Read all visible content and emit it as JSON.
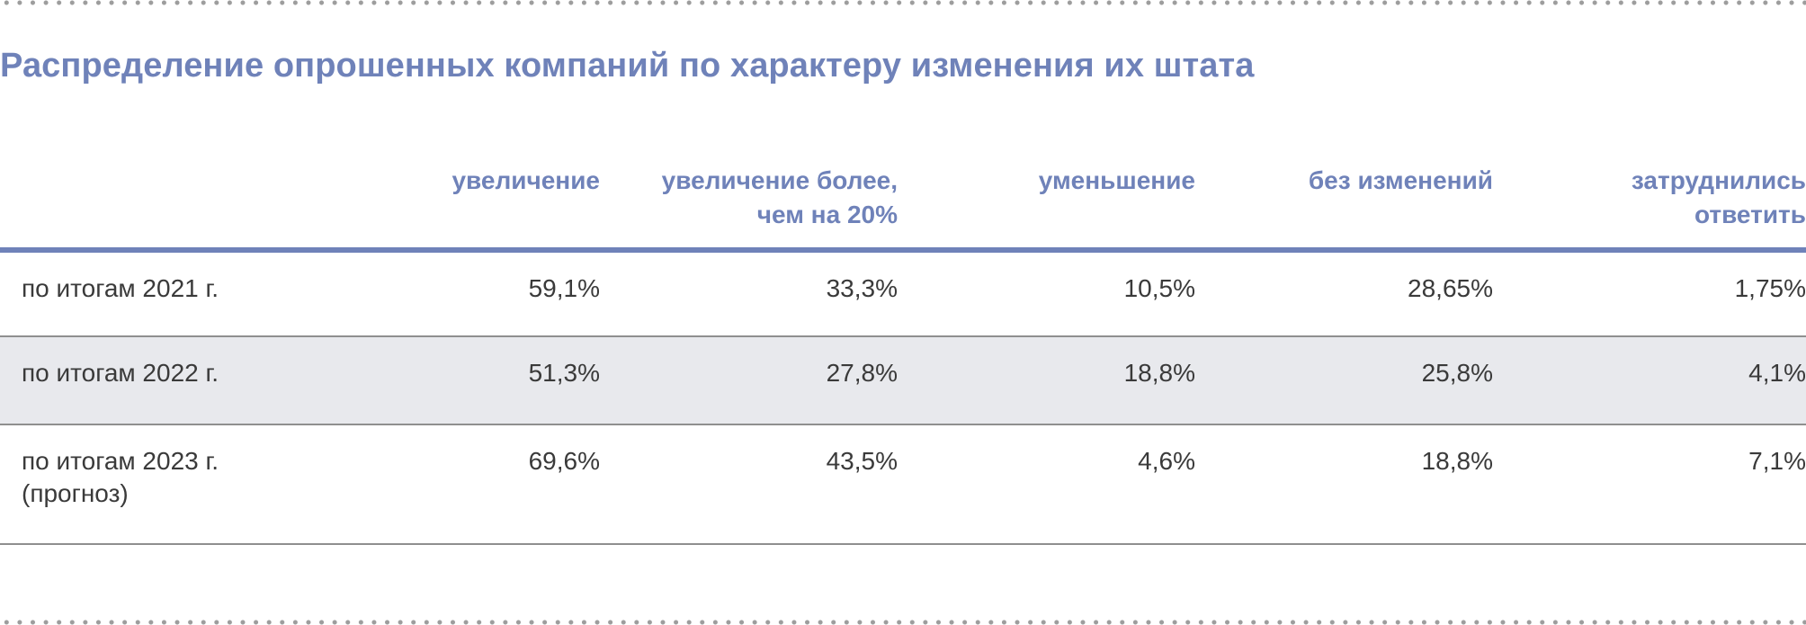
{
  "title": "Распределение опрошенных компаний по характеру изменения их штата",
  "columns": [
    "",
    "увеличение",
    "увеличение более,\nчем на 20%",
    "уменьшение",
    "без изменений",
    "затруднились\nответить"
  ],
  "column_lines": [
    [],
    [
      "увеличение"
    ],
    [
      "увеличение более,",
      "чем на 20%"
    ],
    [
      "уменьшение"
    ],
    [
      "без изменений"
    ],
    [
      "затруднились",
      "ответить"
    ]
  ],
  "rows": [
    {
      "label_lines": [
        "по итогам 2021 г."
      ],
      "values": [
        "59,1%",
        "33,3%",
        "10,5%",
        "28,65%",
        "1,75%"
      ]
    },
    {
      "label_lines": [
        "по итогам 2022 г."
      ],
      "values": [
        "51,3%",
        "27,8%",
        "18,8%",
        "25,8%",
        "4,1%"
      ]
    },
    {
      "label_lines": [
        "по итогам 2023 г.",
        "(прогноз)"
      ],
      "values": [
        "69,6%",
        "43,5%",
        "4,6%",
        "18,8%",
        "7,1%"
      ]
    }
  ],
  "colors": {
    "accent": "#6f82b9",
    "text": "#3a3a3a",
    "alt_row_bg": "#e8e9ed",
    "row_divider": "#8f8f8f",
    "dots": "#9d9d9d"
  }
}
